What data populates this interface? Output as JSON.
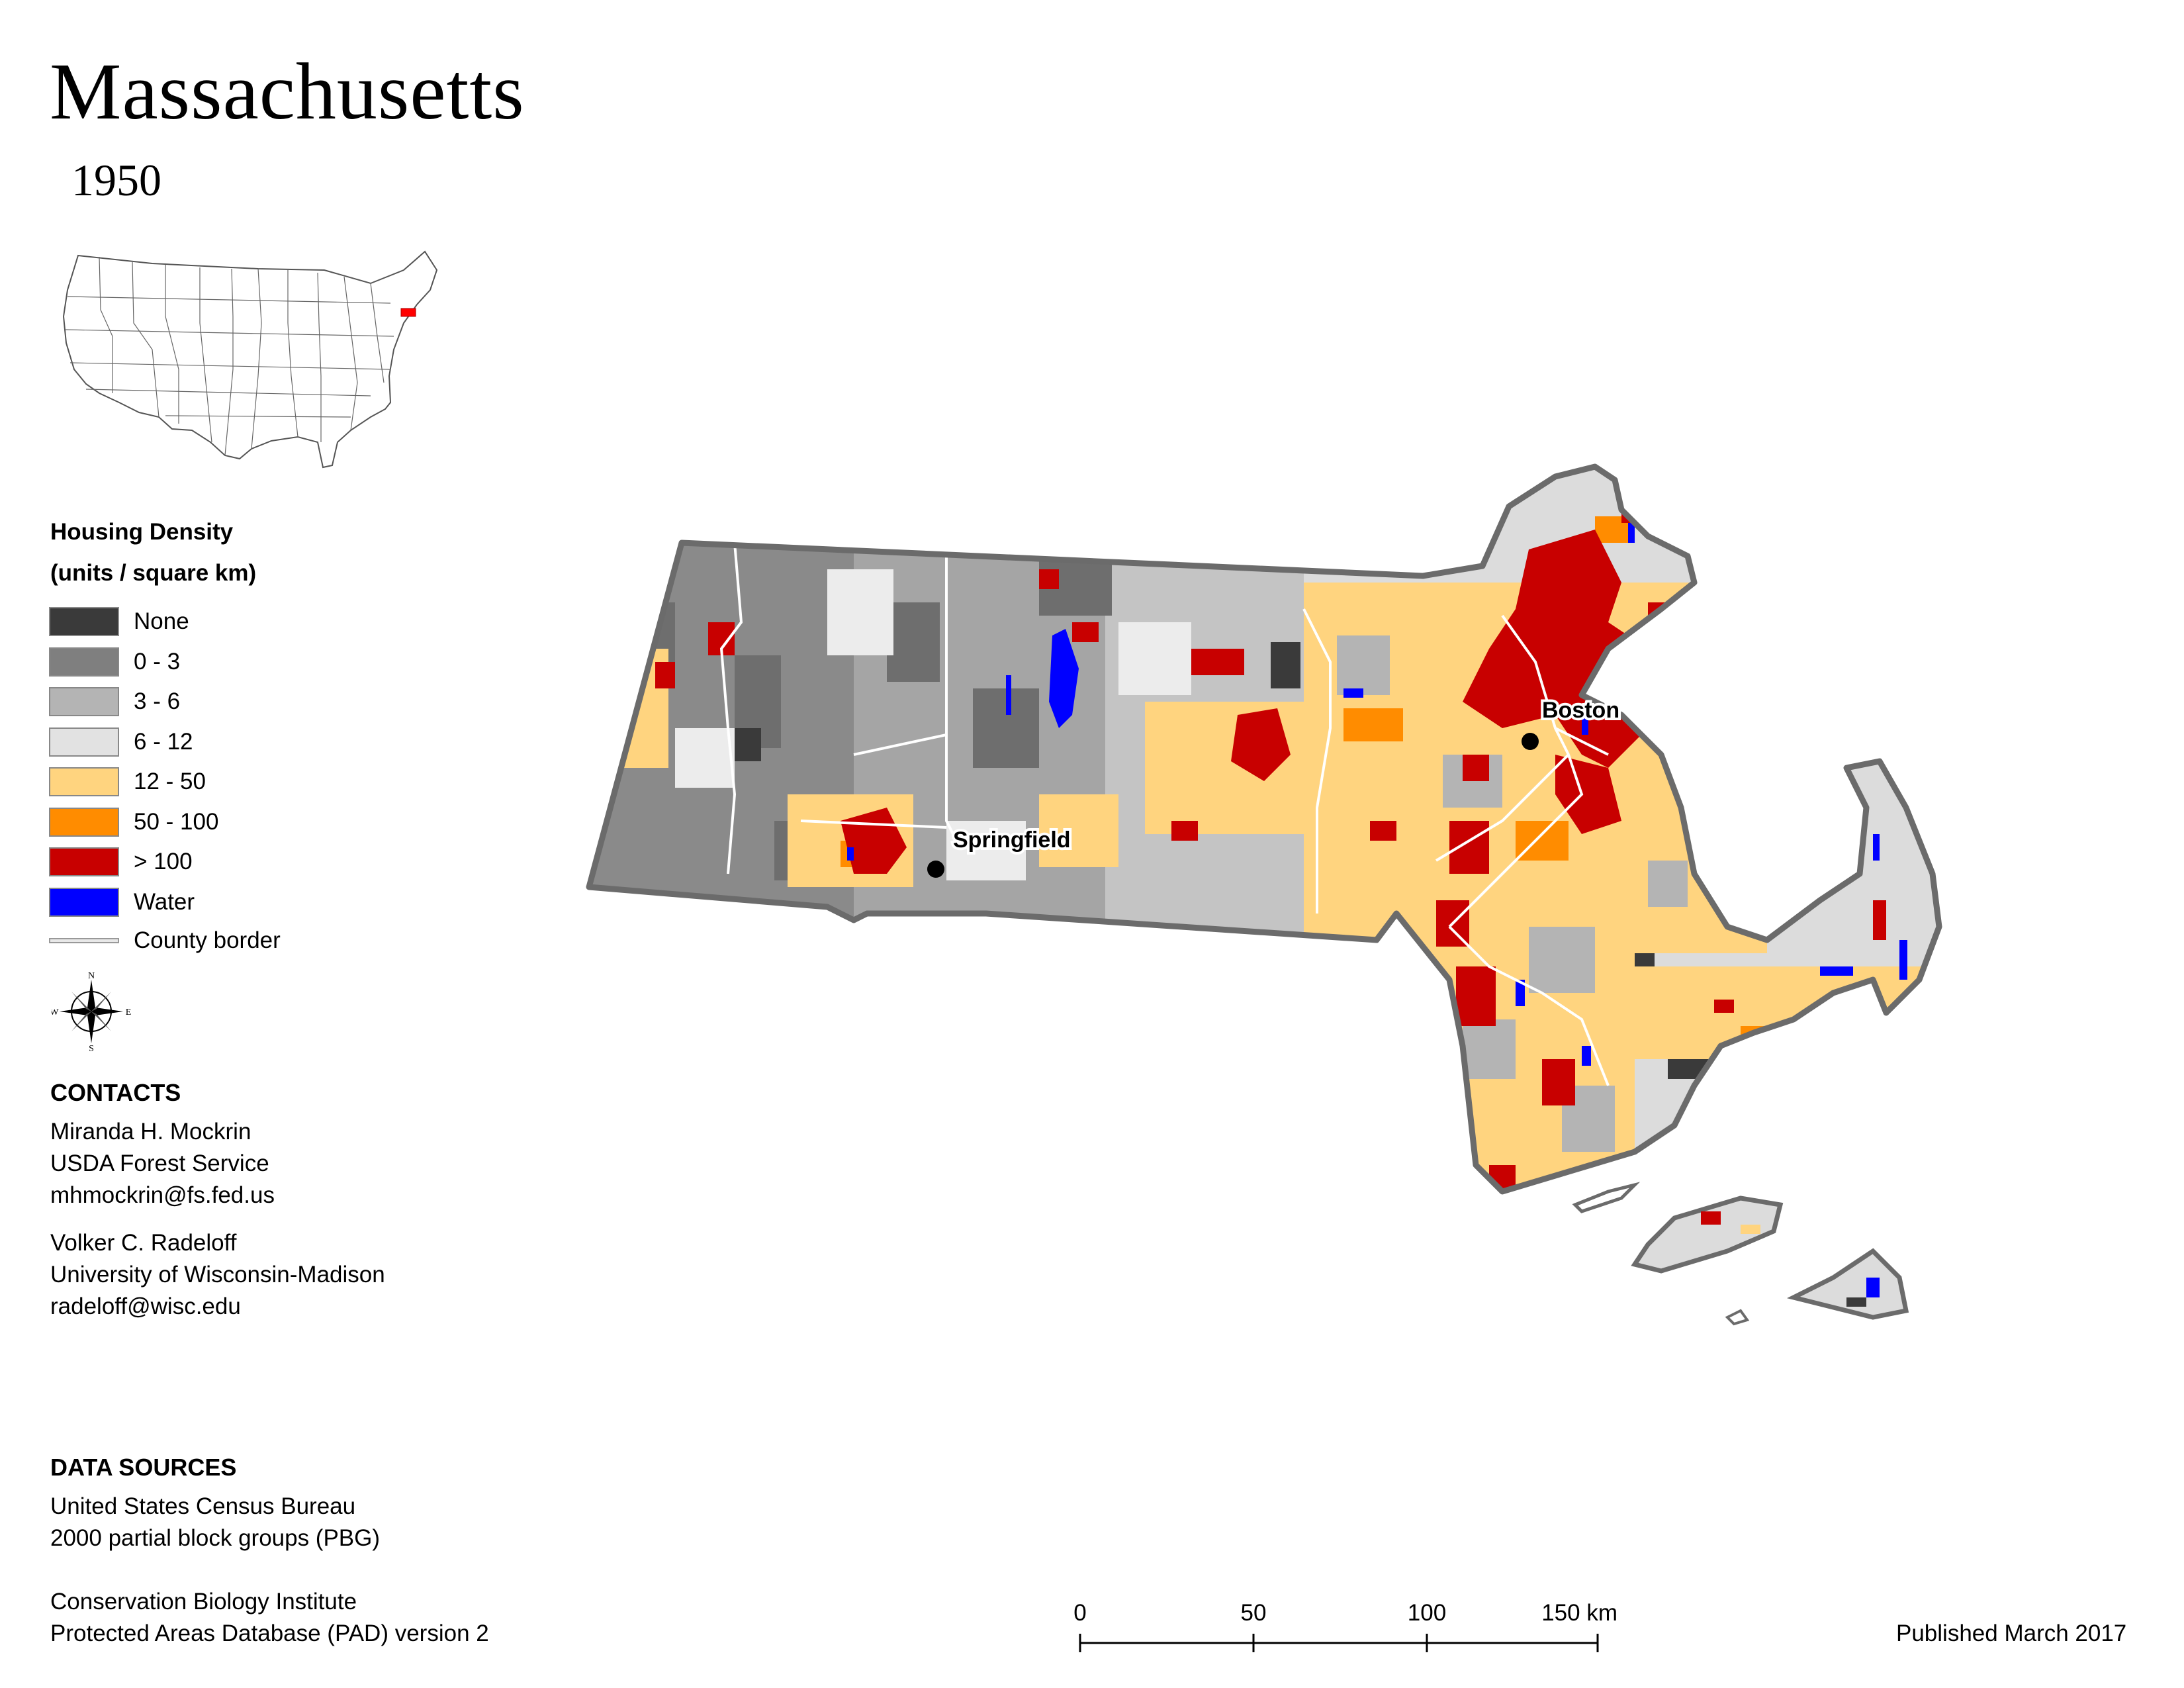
{
  "title": "Massachusetts",
  "year": "1950",
  "legend": {
    "title_line1": "Housing Density",
    "title_line2": "(units / square km)",
    "items": [
      {
        "label": "None",
        "color": "#3a3a3a"
      },
      {
        "label": "0 - 3",
        "color": "#7f7f7f"
      },
      {
        "label": "3 - 6",
        "color": "#b4b4b4"
      },
      {
        "label": "6 - 12",
        "color": "#e2e2e2"
      },
      {
        "label": "12 - 50",
        "color": "#ffd47f"
      },
      {
        "label": "50 - 100",
        "color": "#ff8c00"
      },
      {
        "label": "> 100",
        "color": "#c80000"
      },
      {
        "label": "Water",
        "color": "#0000ff"
      }
    ],
    "county_border_label": "County border"
  },
  "compass": {
    "n": "N",
    "s": "S",
    "e": "E",
    "w": "W"
  },
  "contacts": {
    "heading": "CONTACTS",
    "person1": [
      "Miranda H. Mockrin",
      "USDA Forest Service",
      "mhmockrin@fs.fed.us"
    ],
    "person2": [
      "Volker C. Radeloff",
      "University of Wisconsin-Madison",
      "radeloff@wisc.edu"
    ]
  },
  "data_sources": {
    "heading": "DATA SOURCES",
    "source1": [
      "United States Census Bureau",
      "2000 partial block groups (PBG)"
    ],
    "source2": [
      "Conservation Biology Institute",
      "Protected Areas Database (PAD) version 2"
    ]
  },
  "cities": [
    {
      "name": "Springfield"
    },
    {
      "name": "Boston"
    }
  ],
  "scale": {
    "ticks": [
      "0",
      "50",
      "100",
      "150 km"
    ]
  },
  "published": "Published March 2017",
  "colors": {
    "state_border": "#6b6b6b",
    "county_border": "#ffffff",
    "inset_highlight": "#ff0000"
  }
}
